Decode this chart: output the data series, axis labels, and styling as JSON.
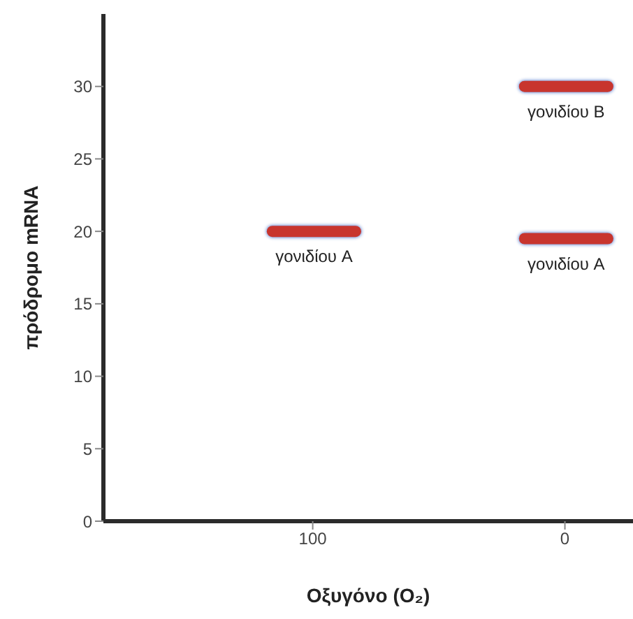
{
  "chart_data": {
    "type": "line",
    "xlabel": "Οξυγόνο (O₂)",
    "ylabel": "πρόδρομο mRNA",
    "series": [
      {
        "name": "γονιδίου A",
        "color": "#c8352e",
        "x": [
          116,
          83
        ],
        "values": [
          20,
          20
        ]
      },
      {
        "name": "γονιδίου B",
        "color": "#c8352e",
        "x": [
          16,
          -17
        ],
        "values": [
          30,
          30
        ]
      },
      {
        "name": "γονιδίου A",
        "color": "#c8352e",
        "x": [
          16,
          -17
        ],
        "values": [
          19.5,
          19.5
        ]
      }
    ],
    "xlim": [
      183,
      -27
    ],
    "xticks": [
      100,
      0
    ],
    "ylim": [
      0,
      35
    ],
    "yticks": [
      0,
      5,
      10,
      15,
      20,
      25,
      30
    ],
    "grid": false,
    "marker": "none",
    "line_style": "solid"
  }
}
